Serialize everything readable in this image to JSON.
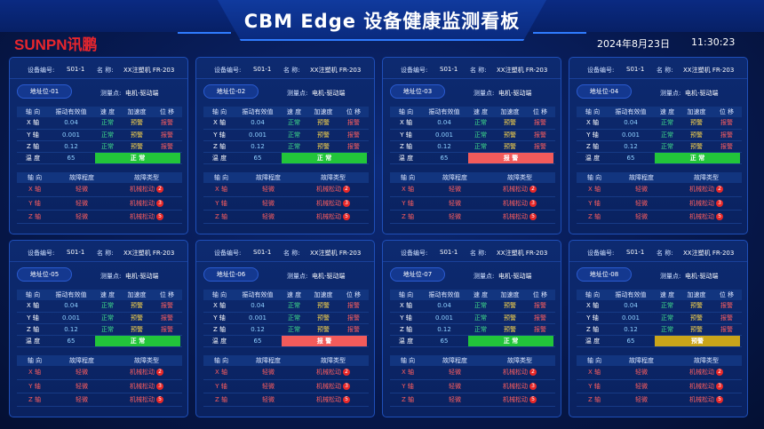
{
  "header": {
    "title": "CBM Edge 设备健康监测看板",
    "logo": "SUNPN讯鹏",
    "date": "2024年8月23日",
    "time": "11:30:23"
  },
  "colors": {
    "ok": "#22c53a",
    "alarm": "#f25b5b",
    "warn": "#c9a51a"
  },
  "labels": {
    "device_no": "设备编号:",
    "name": "名   称:",
    "measure_point": "测量点:",
    "col_axis": "轴 向",
    "col_vib": "振动有效值",
    "col_speed": "速 度",
    "col_acc": "加速度",
    "col_disp": "位 移",
    "temp": "温 度",
    "col_axis2": "轴 向",
    "col_degree": "故障程度",
    "col_fault_type": "故障类型"
  },
  "panels": [
    {
      "device": "S01-1",
      "name": "XX注塑机 FR-203",
      "addr": "地址位-01",
      "point": "电机-驱动端",
      "rows": [
        {
          "axis": "X 轴",
          "vib": "0.04",
          "speed": "正常",
          "acc": "预警",
          "disp": "报警"
        },
        {
          "axis": "Y 轴",
          "vib": "0.001",
          "speed": "正常",
          "acc": "预警",
          "disp": "报警"
        },
        {
          "axis": "Z 轴",
          "vib": "0.12",
          "speed": "正常",
          "acc": "预警",
          "disp": "报警"
        }
      ],
      "temp": "65",
      "status": "正 常",
      "status_type": "ok",
      "faults": [
        {
          "axis": "X 轴",
          "degree": "轻微",
          "type": "机械松动",
          "count": "2"
        },
        {
          "axis": "Y 轴",
          "degree": "轻微",
          "type": "机械松动",
          "count": "3"
        },
        {
          "axis": "Z 轴",
          "degree": "轻微",
          "type": "机械松动",
          "count": "5"
        }
      ]
    },
    {
      "device": "S01-1",
      "name": "XX注塑机 FR-203",
      "addr": "地址位-02",
      "point": "电机-驱动端",
      "rows": [
        {
          "axis": "X 轴",
          "vib": "0.04",
          "speed": "正常",
          "acc": "预警",
          "disp": "报警"
        },
        {
          "axis": "Y 轴",
          "vib": "0.001",
          "speed": "正常",
          "acc": "预警",
          "disp": "报警"
        },
        {
          "axis": "Z 轴",
          "vib": "0.12",
          "speed": "正常",
          "acc": "预警",
          "disp": "报警"
        }
      ],
      "temp": "65",
      "status": "正 常",
      "status_type": "ok",
      "faults": [
        {
          "axis": "X 轴",
          "degree": "轻微",
          "type": "机械松动",
          "count": "2"
        },
        {
          "axis": "Y 轴",
          "degree": "轻微",
          "type": "机械松动",
          "count": "3"
        },
        {
          "axis": "Z 轴",
          "degree": "轻微",
          "type": "机械松动",
          "count": "5"
        }
      ]
    },
    {
      "device": "S01-1",
      "name": "XX注塑机 FR-203",
      "addr": "地址位-03",
      "point": "电机-驱动端",
      "rows": [
        {
          "axis": "X 轴",
          "vib": "0.04",
          "speed": "正常",
          "acc": "预警",
          "disp": "报警"
        },
        {
          "axis": "Y 轴",
          "vib": "0.001",
          "speed": "正常",
          "acc": "预警",
          "disp": "报警"
        },
        {
          "axis": "Z 轴",
          "vib": "0.12",
          "speed": "正常",
          "acc": "预警",
          "disp": "报警"
        }
      ],
      "temp": "65",
      "status": "报 警",
      "status_type": "alarm",
      "faults": [
        {
          "axis": "X 轴",
          "degree": "轻微",
          "type": "机械松动",
          "count": "2"
        },
        {
          "axis": "Y 轴",
          "degree": "轻微",
          "type": "机械松动",
          "count": "3"
        },
        {
          "axis": "Z 轴",
          "degree": "轻微",
          "type": "机械松动",
          "count": "5"
        }
      ]
    },
    {
      "device": "S01-1",
      "name": "XX注塑机 FR-203",
      "addr": "地址位-04",
      "point": "电机-驱动端",
      "rows": [
        {
          "axis": "X 轴",
          "vib": "0.04",
          "speed": "正常",
          "acc": "预警",
          "disp": "报警"
        },
        {
          "axis": "Y 轴",
          "vib": "0.001",
          "speed": "正常",
          "acc": "预警",
          "disp": "报警"
        },
        {
          "axis": "Z 轴",
          "vib": "0.12",
          "speed": "正常",
          "acc": "预警",
          "disp": "报警"
        }
      ],
      "temp": "65",
      "status": "正 常",
      "status_type": "ok",
      "faults": [
        {
          "axis": "X 轴",
          "degree": "轻微",
          "type": "机械松动",
          "count": "2"
        },
        {
          "axis": "Y 轴",
          "degree": "轻微",
          "type": "机械松动",
          "count": "3"
        },
        {
          "axis": "Z 轴",
          "degree": "轻微",
          "type": "机械松动",
          "count": "5"
        }
      ]
    },
    {
      "device": "S01-1",
      "name": "XX注塑机 FR-203",
      "addr": "地址位-05",
      "point": "电机-驱动端",
      "rows": [
        {
          "axis": "X 轴",
          "vib": "0.04",
          "speed": "正常",
          "acc": "预警",
          "disp": "报警"
        },
        {
          "axis": "Y 轴",
          "vib": "0.001",
          "speed": "正常",
          "acc": "预警",
          "disp": "报警"
        },
        {
          "axis": "Z 轴",
          "vib": "0.12",
          "speed": "正常",
          "acc": "预警",
          "disp": "报警"
        }
      ],
      "temp": "65",
      "status": "正 常",
      "status_type": "ok",
      "faults": [
        {
          "axis": "X 轴",
          "degree": "轻微",
          "type": "机械松动",
          "count": "2"
        },
        {
          "axis": "Y 轴",
          "degree": "轻微",
          "type": "机械松动",
          "count": "3"
        },
        {
          "axis": "Z 轴",
          "degree": "轻微",
          "type": "机械松动",
          "count": "5"
        }
      ]
    },
    {
      "device": "S01-1",
      "name": "XX注塑机 FR-203",
      "addr": "地址位-06",
      "point": "电机-驱动端",
      "rows": [
        {
          "axis": "X 轴",
          "vib": "0.04",
          "speed": "正常",
          "acc": "预警",
          "disp": "报警"
        },
        {
          "axis": "Y 轴",
          "vib": "0.001",
          "speed": "正常",
          "acc": "预警",
          "disp": "报警"
        },
        {
          "axis": "Z 轴",
          "vib": "0.12",
          "speed": "正常",
          "acc": "预警",
          "disp": "报警"
        }
      ],
      "temp": "65",
      "status": "报 警",
      "status_type": "alarm",
      "faults": [
        {
          "axis": "X 轴",
          "degree": "轻微",
          "type": "机械松动",
          "count": "2"
        },
        {
          "axis": "Y 轴",
          "degree": "轻微",
          "type": "机械松动",
          "count": "3"
        },
        {
          "axis": "Z 轴",
          "degree": "轻微",
          "type": "机械松动",
          "count": "5"
        }
      ]
    },
    {
      "device": "S01-1",
      "name": "XX注塑机 FR-203",
      "addr": "地址位-07",
      "point": "电机-驱动端",
      "rows": [
        {
          "axis": "X 轴",
          "vib": "0.04",
          "speed": "正常",
          "acc": "预警",
          "disp": "报警"
        },
        {
          "axis": "Y 轴",
          "vib": "0.001",
          "speed": "正常",
          "acc": "预警",
          "disp": "报警"
        },
        {
          "axis": "Z 轴",
          "vib": "0.12",
          "speed": "正常",
          "acc": "预警",
          "disp": "报警"
        }
      ],
      "temp": "65",
      "status": "正 常",
      "status_type": "ok",
      "faults": [
        {
          "axis": "X 轴",
          "degree": "轻微",
          "type": "机械松动",
          "count": "2"
        },
        {
          "axis": "Y 轴",
          "degree": "轻微",
          "type": "机械松动",
          "count": "3"
        },
        {
          "axis": "Z 轴",
          "degree": "轻微",
          "type": "机械松动",
          "count": "5"
        }
      ]
    },
    {
      "device": "S01-1",
      "name": "XX注塑机 FR-203",
      "addr": "地址位-08",
      "point": "电机-驱动端",
      "rows": [
        {
          "axis": "X 轴",
          "vib": "0.04",
          "speed": "正常",
          "acc": "预警",
          "disp": "报警"
        },
        {
          "axis": "Y 轴",
          "vib": "0.001",
          "speed": "正常",
          "acc": "预警",
          "disp": "报警"
        },
        {
          "axis": "Z 轴",
          "vib": "0.12",
          "speed": "正常",
          "acc": "预警",
          "disp": "报警"
        }
      ],
      "temp": "65",
      "status": "预警",
      "status_type": "warn",
      "faults": [
        {
          "axis": "X 轴",
          "degree": "轻微",
          "type": "机械松动",
          "count": "2"
        },
        {
          "axis": "Y 轴",
          "degree": "轻微",
          "type": "机械松动",
          "count": "3"
        },
        {
          "axis": "Z 轴",
          "degree": "轻微",
          "type": "机械松动",
          "count": "5"
        }
      ]
    }
  ]
}
